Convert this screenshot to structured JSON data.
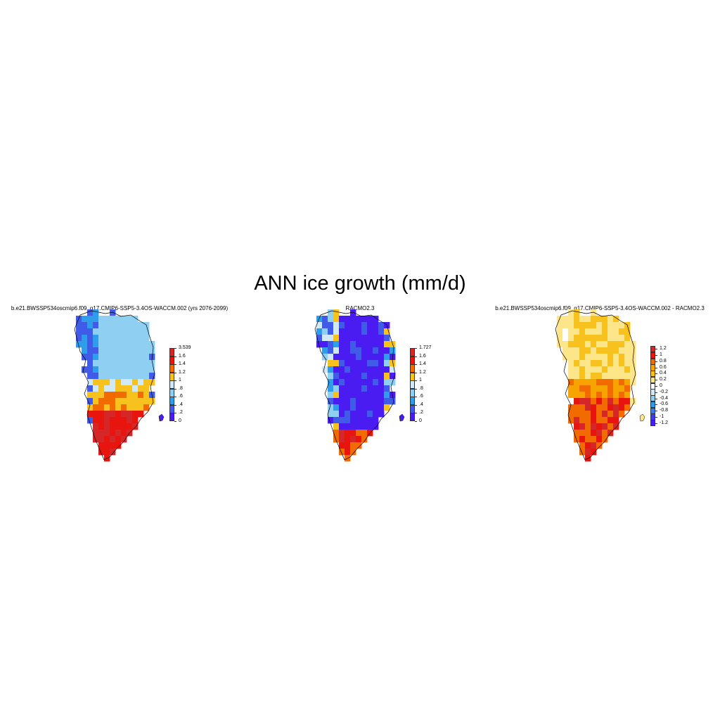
{
  "title": "ANN ice growth (mm/d)",
  "panels": [
    {
      "title": "b.e21.BWSSP534oscmip6.f09_g17.CMIP6-SSP5-3.4OS-WACCM.002 (yrs 2076-2099)",
      "colorbar": {
        "labels": [
          "3.539",
          "1.6",
          "1.4",
          "1.2",
          "1",
          ".8",
          ".6",
          ".4",
          ".2",
          "0"
        ],
        "colors": [
          "#d62728",
          "#e8150f",
          "#f26b00",
          "#f8c21e",
          "#cfe9f7",
          "#8fd0f2",
          "#2f9de9",
          "#3f5be8",
          "#4a1cf2"
        ]
      }
    },
    {
      "title": "RACMO2.3",
      "colorbar": {
        "labels": [
          "1.727",
          "1.6",
          "1.4",
          "1.2",
          "1",
          ".8",
          ".6",
          ".4",
          ".2",
          "0"
        ],
        "colors": [
          "#d62728",
          "#e8150f",
          "#f26b00",
          "#f8c21e",
          "#cfe9f7",
          "#8fd0f2",
          "#2f9de9",
          "#3f5be8",
          "#4a1cf2"
        ]
      }
    },
    {
      "title": "b.e21.BWSSP534oscmip6.f09_g17.CMIP6-SSP5-3.4OS-WACCM.002 - RACMO2.3",
      "colorbar": {
        "labels": [
          "1.2",
          "1",
          "0.8",
          "0.6",
          "0.4",
          "0.2",
          "0",
          "-0.2",
          "-0.4",
          "-0.6",
          "-0.8",
          "-1",
          "-1.2"
        ],
        "colors": [
          "#d62728",
          "#e8150f",
          "#f26b00",
          "#f8a400",
          "#f8c21e",
          "#fde68a",
          "#ffffff",
          "#cfe9f7",
          "#8fd0f2",
          "#2f9de9",
          "#3f7ae8",
          "#3f3be8",
          "#4a1cf2"
        ]
      }
    }
  ]
}
